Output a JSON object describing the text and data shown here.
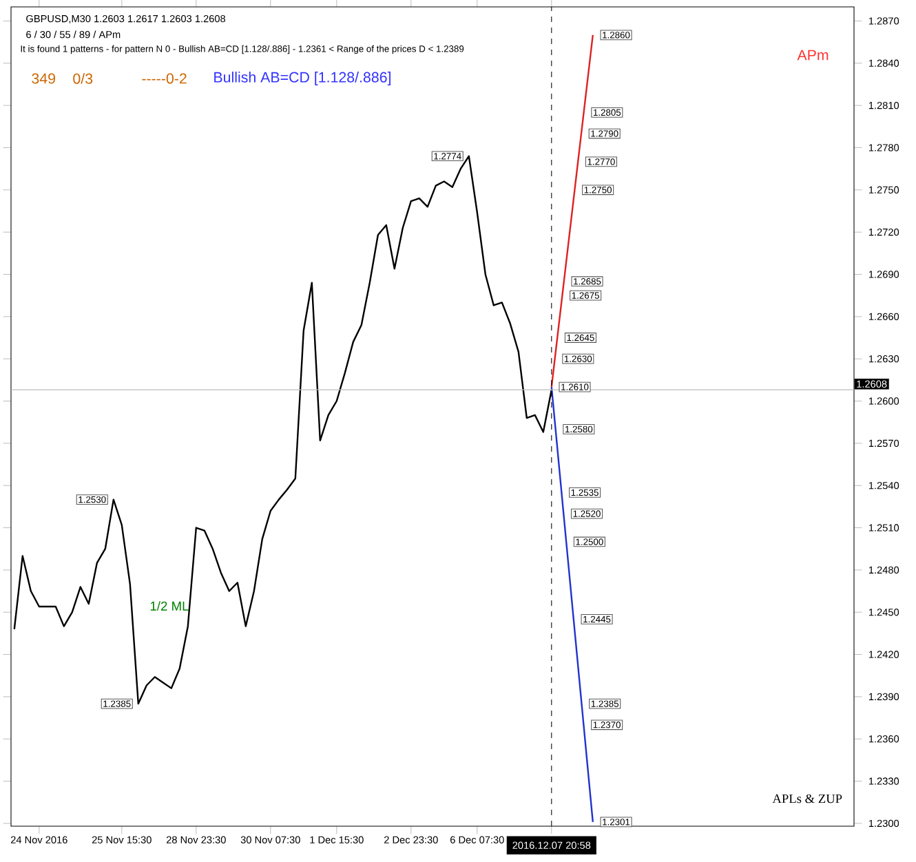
{
  "chart_data": {
    "type": "line",
    "title": "GBPUSD,M30  1.2603 1.2617 1.2603 1.2608",
    "subtitle": "6 / 30 / 55 / 89 / APm",
    "categories": [
      null,
      null,
      null,
      "24 Nov 2016",
      null,
      null,
      null,
      null,
      null,
      null,
      null,
      null,
      null,
      "25 Nov 15:30",
      null,
      null,
      null,
      null,
      null,
      null,
      null,
      null,
      "28 Nov 23:30",
      null,
      null,
      null,
      null,
      null,
      null,
      null,
      null,
      "30 Nov 07:30",
      null,
      null,
      null,
      null,
      null,
      null,
      null,
      "1 Dec 15:30",
      null,
      null,
      null,
      null,
      null,
      null,
      null,
      null,
      "2 Dec 23:30",
      null,
      null,
      null,
      null,
      null,
      null,
      null,
      "6 Dec 07:30",
      null,
      null,
      null,
      null,
      null,
      null,
      null,
      null,
      "2016.12.07 20:58",
      null,
      null,
      null,
      null,
      null
    ],
    "ylim": [
      1.2298,
      1.288
    ],
    "yticks": [
      {
        "value": 1.23,
        "label": "1.2300"
      },
      {
        "value": 1.233,
        "label": "1.2330"
      },
      {
        "value": 1.236,
        "label": "1.2360"
      },
      {
        "value": 1.239,
        "label": "1.2390"
      },
      {
        "value": 1.242,
        "label": "1.2420"
      },
      {
        "value": 1.245,
        "label": "1.2450"
      },
      {
        "value": 1.248,
        "label": "1.2480"
      },
      {
        "value": 1.251,
        "label": "1.2510"
      },
      {
        "value": 1.254,
        "label": "1.2540"
      },
      {
        "value": 1.257,
        "label": "1.2570"
      },
      {
        "value": 1.26,
        "label": "1.2600"
      },
      {
        "value": 1.263,
        "label": "1.2630"
      },
      {
        "value": 1.266,
        "label": "1.2660"
      },
      {
        "value": 1.269,
        "label": "1.2690"
      },
      {
        "value": 1.272,
        "label": "1.2720"
      },
      {
        "value": 1.275,
        "label": "1.2750"
      },
      {
        "value": 1.278,
        "label": "1.2780"
      },
      {
        "value": 1.281,
        "label": "1.2810"
      },
      {
        "value": 1.284,
        "label": "1.2840"
      },
      {
        "value": 1.287,
        "label": "1.2870"
      }
    ],
    "series": [
      {
        "color": "#000000",
        "values": [
          1.2438,
          1.249,
          1.2465,
          1.2454,
          1.2454,
          1.2454,
          1.244,
          1.245,
          1.2468,
          1.2456,
          1.2485,
          1.2495,
          1.253,
          1.2512,
          1.247,
          1.2385,
          1.2398,
          1.2404,
          1.24,
          1.2396,
          1.241,
          1.244,
          1.251,
          1.2508,
          1.2495,
          1.2478,
          1.2465,
          1.2471,
          1.244,
          1.2465,
          1.2502,
          1.2522,
          1.253,
          1.2537,
          1.2545,
          1.265,
          1.2684,
          1.2572,
          1.259,
          1.26,
          1.262,
          1.2642,
          1.2654,
          1.2684,
          1.2718,
          1.2725,
          1.2694,
          1.2723,
          1.2742,
          1.2744,
          1.2738,
          1.2753,
          1.2756,
          1.2752,
          1.2765,
          1.2774,
          1.2734,
          1.269,
          1.2668,
          1.267,
          1.2655,
          1.2635,
          1.2588,
          1.259,
          1.2578,
          1.2608,
          null,
          null,
          null,
          null,
          null
        ]
      },
      {
        "color": "#dd2222",
        "values": [
          null,
          null,
          null,
          null,
          null,
          null,
          null,
          null,
          null,
          null,
          null,
          null,
          null,
          null,
          null,
          null,
          null,
          null,
          null,
          null,
          null,
          null,
          null,
          null,
          null,
          null,
          null,
          null,
          null,
          null,
          null,
          null,
          null,
          null,
          null,
          null,
          null,
          null,
          null,
          null,
          null,
          null,
          null,
          null,
          null,
          null,
          null,
          null,
          null,
          null,
          null,
          null,
          null,
          null,
          null,
          null,
          null,
          null,
          null,
          null,
          null,
          null,
          null,
          null,
          null,
          1.261,
          null,
          null,
          null,
          null,
          1.286
        ]
      },
      {
        "color": "#2233cc",
        "values": [
          null,
          null,
          null,
          null,
          null,
          null,
          null,
          null,
          null,
          null,
          null,
          null,
          null,
          null,
          null,
          null,
          null,
          null,
          null,
          null,
          null,
          null,
          null,
          null,
          null,
          null,
          null,
          null,
          null,
          null,
          null,
          null,
          null,
          null,
          null,
          null,
          null,
          null,
          null,
          null,
          null,
          null,
          null,
          null,
          null,
          null,
          null,
          null,
          null,
          null,
          null,
          null,
          null,
          null,
          null,
          null,
          null,
          null,
          null,
          null,
          null,
          null,
          null,
          null,
          null,
          1.261,
          null,
          null,
          null,
          null,
          1.2301
        ]
      }
    ],
    "ref_lines": [
      {
        "axis": "y",
        "value": 1.2608,
        "label": "1.2608",
        "color": "#bbbbbb"
      },
      {
        "axis": "x",
        "value": "2016.12.07 20:58",
        "color": "#000000",
        "line_style": "dashed"
      }
    ],
    "annotations": [
      "It is found 1 patterns  -  for pattern N 0 - Bullish AB=CD [1.128/.886] - 1.2361 < Range of the prices D < 1.2389",
      "349",
      "0/3",
      "-----0-2",
      "Bullish AB=CD [1.128/.886]",
      "APm",
      "APLs & ZUP",
      "1/2 ML",
      {
        "text": "1.2774",
        "y": 1.2774
      },
      {
        "text": "1.2530",
        "y": 1.253
      },
      {
        "text": "1.2385",
        "y": 1.2385
      },
      {
        "text": "1.2860",
        "y": 1.286
      },
      {
        "text": "1.2805",
        "y": 1.2805
      },
      {
        "text": "1.2790",
        "y": 1.279
      },
      {
        "text": "1.2770",
        "y": 1.277
      },
      {
        "text": "1.2750",
        "y": 1.275
      },
      {
        "text": "1.2685",
        "y": 1.2685
      },
      {
        "text": "1.2675",
        "y": 1.2675
      },
      {
        "text": "1.2645",
        "y": 1.2645
      },
      {
        "text": "1.2630",
        "y": 1.263
      },
      {
        "text": "1.2610",
        "y": 1.261
      },
      {
        "text": "1.2580",
        "y": 1.258
      },
      {
        "text": "1.2535",
        "y": 1.2535
      },
      {
        "text": "1.2520",
        "y": 1.252
      },
      {
        "text": "1.2500",
        "y": 1.25
      },
      {
        "text": "1.2445",
        "y": 1.2445
      },
      {
        "text": "1.2385",
        "y": 1.2385
      },
      {
        "text": "1.2370",
        "y": 1.237
      },
      {
        "text": "1.2301",
        "y": 1.2301
      }
    ]
  }
}
